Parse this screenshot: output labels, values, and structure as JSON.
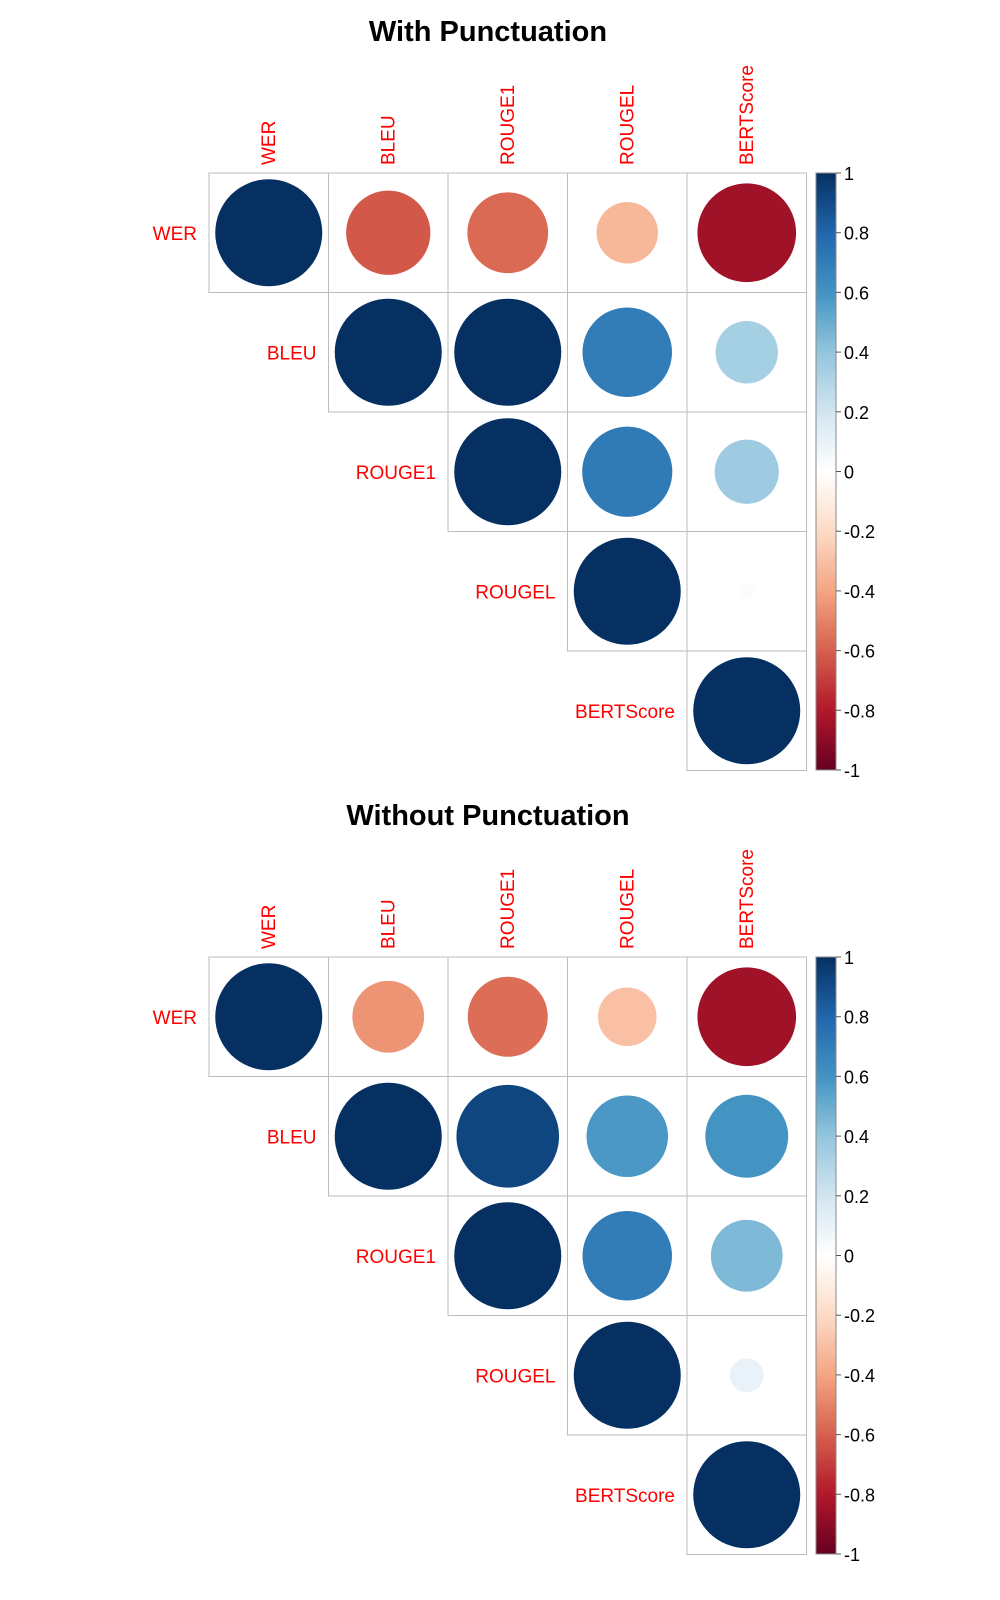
{
  "chart_data": [
    {
      "type": "heatmap",
      "title": "With Punctuation",
      "variables": [
        "WER",
        "BLEU",
        "ROUGE1",
        "ROUGEL",
        "BERTScore"
      ],
      "matrix": [
        [
          1.0,
          -0.62,
          -0.57,
          -0.33,
          -0.85
        ],
        [
          -0.62,
          1.0,
          1.0,
          0.7,
          0.34
        ],
        [
          -0.57,
          1.0,
          1.0,
          0.71,
          0.36
        ],
        [
          -0.33,
          0.7,
          0.71,
          1.0,
          0.02
        ],
        [
          -0.85,
          0.34,
          0.36,
          0.02,
          1.0
        ]
      ],
      "upper_triangle_only": true,
      "colorbar": {
        "range": [
          -1,
          1
        ],
        "ticks": [
          "1",
          "0.8",
          "0.6",
          "0.4",
          "0.2",
          "0",
          "-0.2",
          "-0.4",
          "-0.6",
          "-0.8",
          "-1"
        ]
      }
    },
    {
      "type": "heatmap",
      "title": "Without Punctuation",
      "variables": [
        "WER",
        "BLEU",
        "ROUGE1",
        "ROUGEL",
        "BERTScore"
      ],
      "matrix": [
        [
          1.0,
          -0.45,
          -0.56,
          -0.3,
          -0.85
        ],
        [
          -0.45,
          1.0,
          0.92,
          0.58,
          0.6
        ],
        [
          -0.56,
          0.92,
          1.0,
          0.7,
          0.45
        ],
        [
          -0.3,
          0.58,
          0.7,
          1.0,
          0.1
        ],
        [
          -0.85,
          0.6,
          0.45,
          0.1,
          1.0
        ]
      ],
      "upper_triangle_only": true,
      "colorbar": {
        "range": [
          -1,
          1
        ],
        "ticks": [
          "1",
          "0.8",
          "0.6",
          "0.4",
          "0.2",
          "0",
          "-0.2",
          "-0.4",
          "-0.6",
          "-0.8",
          "-1"
        ]
      }
    }
  ]
}
